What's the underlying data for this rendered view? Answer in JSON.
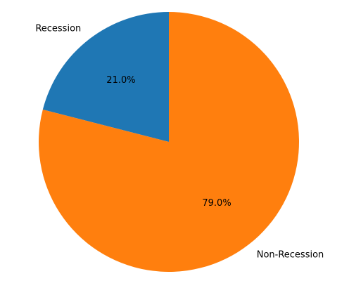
{
  "chart_data": {
    "type": "pie",
    "title": "",
    "categories": [
      "Recession",
      "Non-Recession"
    ],
    "values": [
      21.0,
      79.0
    ],
    "percent_labels": [
      "21.0%",
      "79.0%"
    ],
    "colors": [
      "#1f77b4",
      "#ff7f0e"
    ],
    "start_angle_deg": 90,
    "direction": "counterclockwise",
    "legend": "none"
  }
}
